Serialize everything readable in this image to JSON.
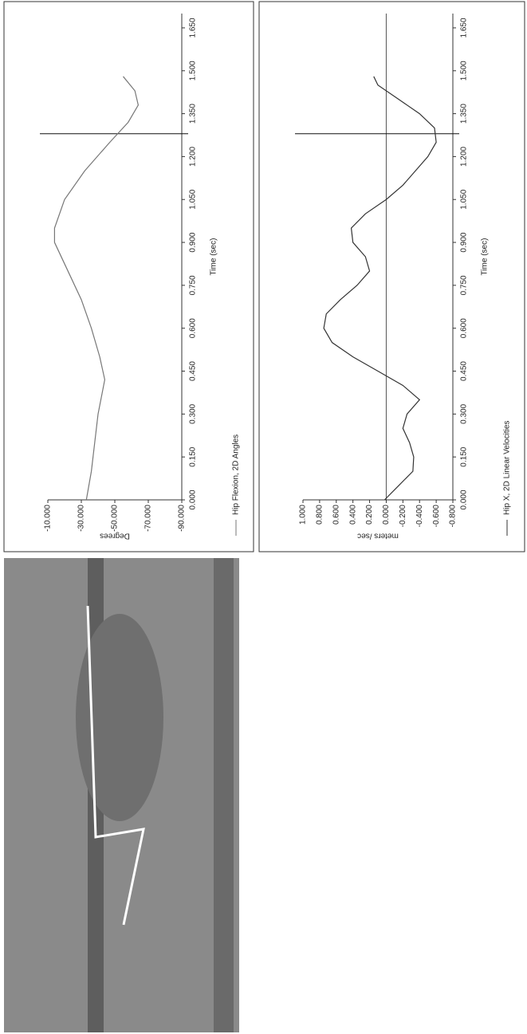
{
  "chart_data": [
    {
      "type": "line",
      "title": null,
      "x_label": "Time (sec)",
      "y_label": "Degrees",
      "xlim": [
        0,
        1.7
      ],
      "ylim": [
        -90,
        -10
      ],
      "xticks": [
        {
          "value": 0,
          "label": "0.000"
        },
        {
          "value": 0.15,
          "label": "0.150"
        },
        {
          "value": 0.3,
          "label": "0.300"
        },
        {
          "value": 0.45,
          "label": "0.450"
        },
        {
          "value": 0.6,
          "label": "0.600"
        },
        {
          "value": 0.75,
          "label": "0.750"
        },
        {
          "value": 0.9,
          "label": "0.900"
        },
        {
          "value": 1.05,
          "label": "1.050"
        },
        {
          "value": 1.2,
          "label": "1.200"
        },
        {
          "value": 1.35,
          "label": "1.350"
        },
        {
          "value": 1.5,
          "label": "1.500"
        },
        {
          "value": 1.65,
          "label": "1.650"
        }
      ],
      "yticks": [
        {
          "value": -10,
          "label": "-10.000"
        },
        {
          "value": -30,
          "label": "-30.000"
        },
        {
          "value": -50,
          "label": "-50.000"
        },
        {
          "value": -70,
          "label": "-70.000"
        },
        {
          "value": -90,
          "label": "-90.000"
        }
      ],
      "cursor_x": 1.28,
      "x": [
        0,
        0.1,
        0.2,
        0.3,
        0.42,
        0.5,
        0.6,
        0.7,
        0.8,
        0.9,
        0.95,
        1.05,
        1.15,
        1.25,
        1.32,
        1.38,
        1.43,
        1.48
      ],
      "series": [
        {
          "name": "Hip Flexion, 2D Angles",
          "color": "#777777",
          "values": [
            -33,
            -36,
            -38,
            -40,
            -44,
            -41,
            -36,
            -30,
            -22,
            -14,
            -14,
            -20,
            -32,
            -47,
            -58,
            -64,
            -62,
            -55
          ]
        }
      ]
    },
    {
      "type": "line",
      "title": null,
      "x_label": "Time (sec)",
      "y_label": "meters /sec",
      "xlim": [
        0,
        1.7
      ],
      "ylim": [
        -0.8,
        1.0
      ],
      "zero_line": true,
      "xticks": [
        {
          "value": 0,
          "label": "0.000"
        },
        {
          "value": 0.15,
          "label": "0.150"
        },
        {
          "value": 0.3,
          "label": "0.300"
        },
        {
          "value": 0.45,
          "label": "0.450"
        },
        {
          "value": 0.6,
          "label": "0.600"
        },
        {
          "value": 0.75,
          "label": "0.750"
        },
        {
          "value": 0.9,
          "label": "0.900"
        },
        {
          "value": 1.05,
          "label": "1.050"
        },
        {
          "value": 1.2,
          "label": "1.200"
        },
        {
          "value": 1.35,
          "label": "1.350"
        },
        {
          "value": 1.5,
          "label": "1.500"
        },
        {
          "value": 1.65,
          "label": "1.650"
        }
      ],
      "yticks": [
        {
          "value": 1,
          "label": "1.000"
        },
        {
          "value": 0.8,
          "label": "0.800"
        },
        {
          "value": 0.6,
          "label": "0.600"
        },
        {
          "value": 0.4,
          "label": "0.400"
        },
        {
          "value": 0.2,
          "label": "0.200"
        },
        {
          "value": 0,
          "label": "0.000"
        },
        {
          "value": -0.2,
          "label": "-0.200"
        },
        {
          "value": -0.4,
          "label": "-0.400"
        },
        {
          "value": -0.6,
          "label": "-0.600"
        },
        {
          "value": -0.8,
          "label": "-0.800"
        }
      ],
      "cursor_x": 1.28,
      "x": [
        0,
        0.05,
        0.1,
        0.15,
        0.2,
        0.25,
        0.3,
        0.35,
        0.4,
        0.45,
        0.5,
        0.55,
        0.6,
        0.65,
        0.7,
        0.75,
        0.8,
        0.85,
        0.9,
        0.95,
        1.0,
        1.05,
        1.1,
        1.15,
        1.2,
        1.25,
        1.3,
        1.35,
        1.4,
        1.45,
        1.48
      ],
      "series": [
        {
          "name": "Hip X, 2D Linear Velocities",
          "color": "#333333",
          "values": [
            0.02,
            -0.15,
            -0.32,
            -0.33,
            -0.28,
            -0.2,
            -0.25,
            -0.4,
            -0.2,
            0.1,
            0.4,
            0.65,
            0.75,
            0.72,
            0.55,
            0.35,
            0.2,
            0.25,
            0.4,
            0.42,
            0.25,
            0.0,
            -0.2,
            -0.35,
            -0.5,
            -0.6,
            -0.58,
            -0.4,
            -0.15,
            0.1,
            0.15
          ]
        }
      ]
    }
  ]
}
